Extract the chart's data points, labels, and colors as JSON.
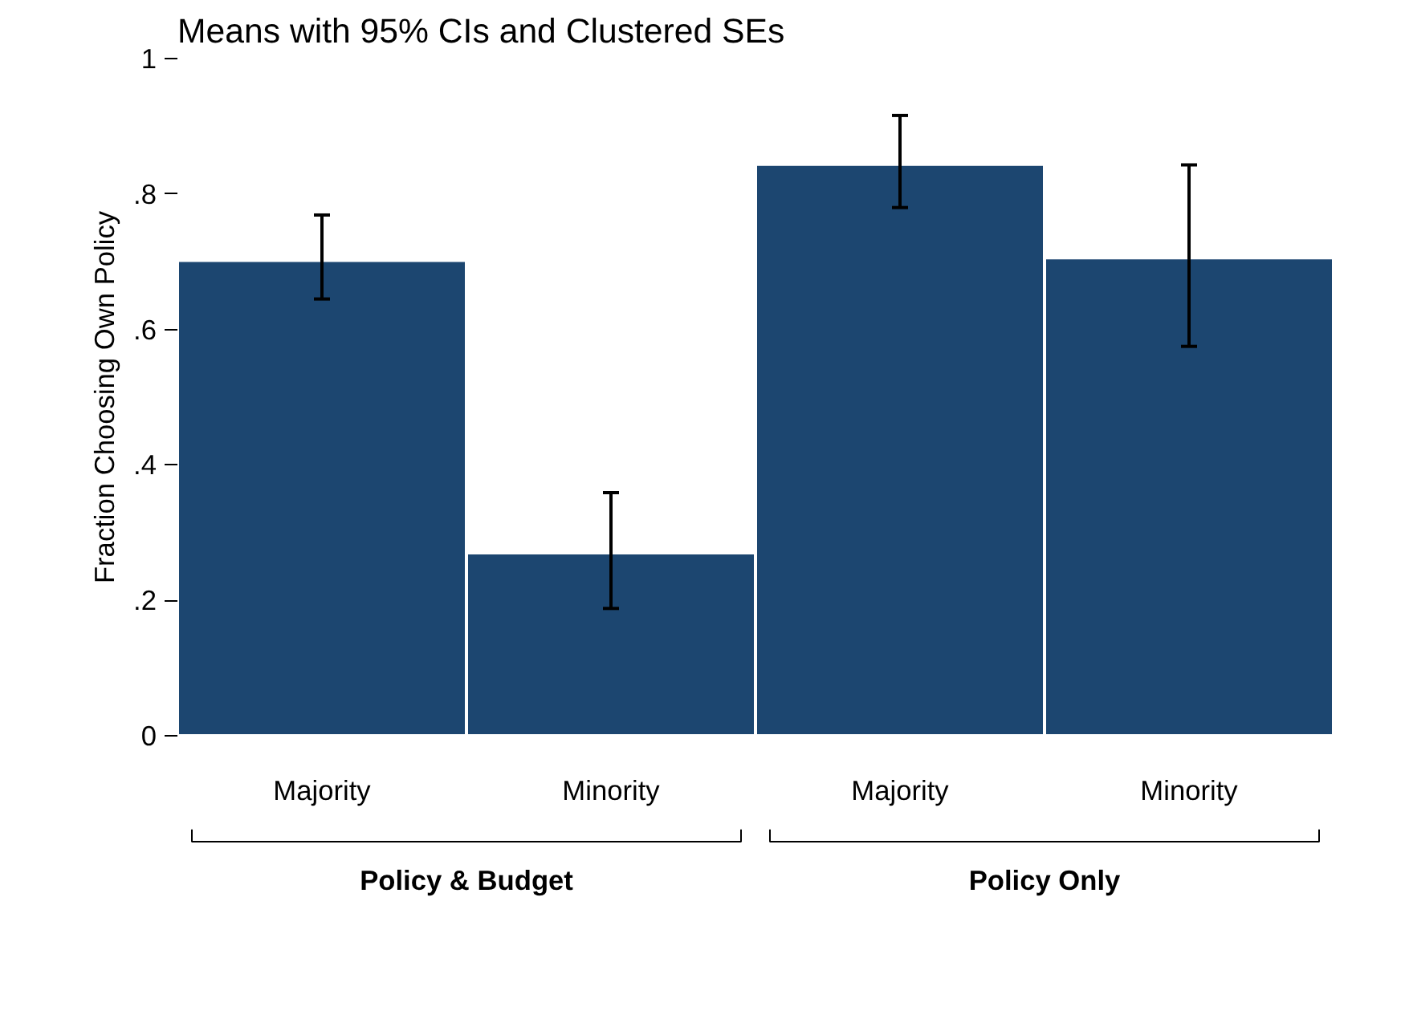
{
  "chart_data": {
    "type": "bar",
    "title": "Means with 95% CIs and Clustered SEs",
    "ylabel": "Fraction Choosing Own Policy",
    "categories": [
      "Majority",
      "Minority",
      "Majority",
      "Minority"
    ],
    "values": [
      0.702,
      0.27,
      0.844,
      0.706
    ],
    "errors": [
      [
        0.645,
        0.769
      ],
      [
        0.188,
        0.359
      ],
      [
        0.78,
        0.916
      ],
      [
        0.575,
        0.843
      ]
    ],
    "color": "#1c4670",
    "ylim": [
      0,
      1
    ],
    "yticks": [
      {
        "value": 0,
        "label": "0"
      },
      {
        "value": 0.2,
        "label": ".2"
      },
      {
        "value": 0.4,
        "label": ".4"
      },
      {
        "value": 0.6,
        "label": ".6"
      },
      {
        "value": 0.8,
        "label": ".8"
      },
      {
        "value": 1,
        "label": "1"
      }
    ],
    "annotations": [
      "Policy & Budget",
      "Policy Only"
    ],
    "grid": false
  }
}
